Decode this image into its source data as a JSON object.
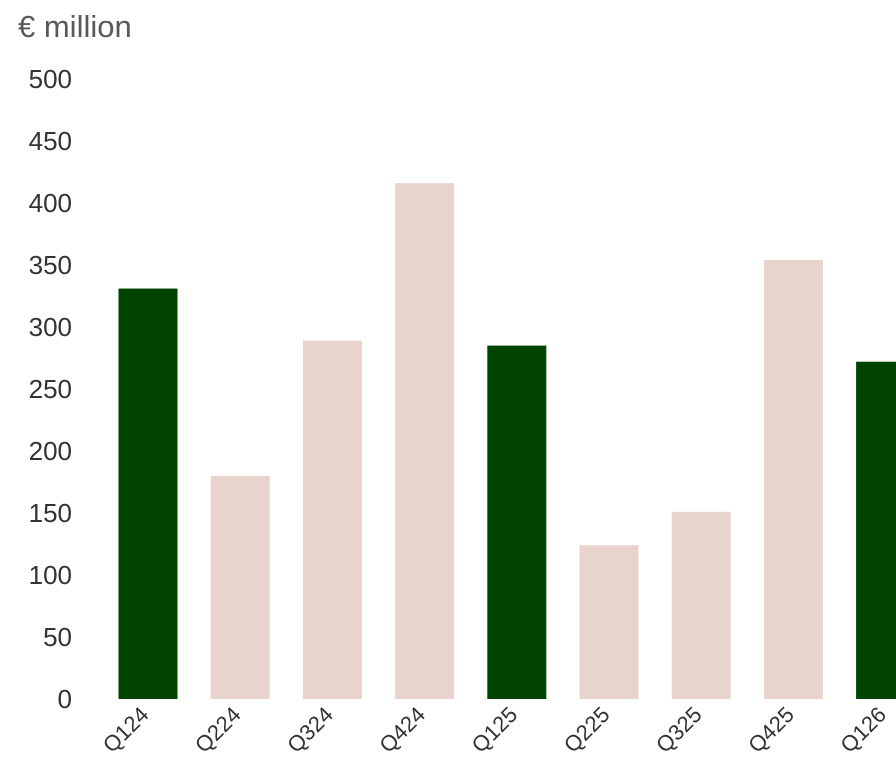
{
  "chart_data": {
    "type": "bar",
    "unit_label": "€ million",
    "categories": [
      "Q124",
      "Q224",
      "Q324",
      "Q424",
      "Q125",
      "Q225",
      "Q325",
      "Q425",
      "Q126"
    ],
    "values": [
      331,
      180,
      289,
      416,
      285,
      124,
      151,
      354,
      272
    ],
    "bar_colors": [
      "#004400",
      "#e8d3cd",
      "#e8d3cd",
      "#e8d3cd",
      "#004400",
      "#e8d3cd",
      "#e8d3cd",
      "#e8d3cd",
      "#004400"
    ],
    "ylim": [
      0,
      500
    ],
    "yticks": [
      0,
      50,
      100,
      150,
      200,
      250,
      300,
      350,
      400,
      450,
      500
    ],
    "grid": false,
    "legend": "none"
  }
}
